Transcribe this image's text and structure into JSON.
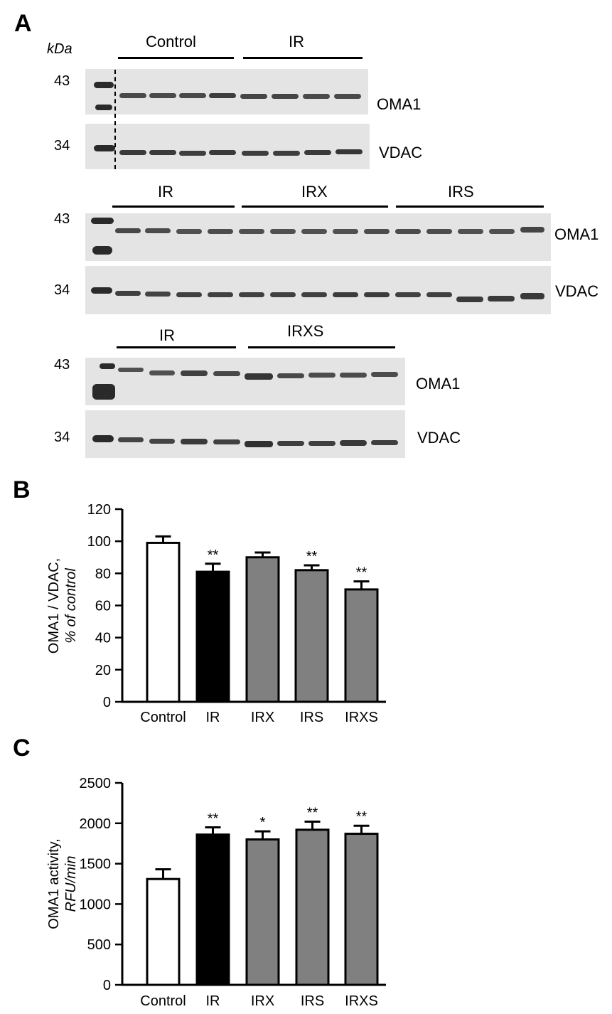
{
  "panel_a": {
    "letter": "A",
    "kda_label": "kDa",
    "blot1": {
      "groups": [
        "Control",
        "IR"
      ],
      "oma1_mw": "43",
      "vdac_mw": "34",
      "oma1_label": "OMA1",
      "vdac_label": "VDAC"
    },
    "blot2": {
      "groups": [
        "IR",
        "IRX",
        "IRS"
      ],
      "oma1_mw": "43",
      "vdac_mw": "34",
      "oma1_label": "OMA1",
      "vdac_label": "VDAC"
    },
    "blot3": {
      "groups": [
        "IR",
        "IRXS"
      ],
      "oma1_mw": "43",
      "vdac_mw": "34",
      "oma1_label": "OMA1",
      "vdac_label": "VDAC"
    }
  },
  "chart_data": [
    {
      "panel": "B",
      "type": "bar",
      "categories": [
        "Control",
        "IR",
        "IRX",
        "IRS",
        "IRXS"
      ],
      "values": [
        99,
        81,
        90,
        82,
        70
      ],
      "errors": [
        4,
        5,
        3,
        3,
        5
      ],
      "significance": [
        "",
        "**",
        "",
        "**",
        "**"
      ],
      "colors": [
        "#ffffff",
        "#000000",
        "#808080",
        "#808080",
        "#808080"
      ],
      "ylabel": "OMA1 / VDAC,",
      "ylabel2": "% of control",
      "ylim": [
        0,
        120
      ],
      "yticks": [
        "0",
        "20",
        "40",
        "60",
        "80",
        "100",
        "120"
      ],
      "grid": false
    },
    {
      "panel": "C",
      "type": "bar",
      "categories": [
        "Control",
        "IR",
        "IRX",
        "IRS",
        "IRXS"
      ],
      "values": [
        1310,
        1860,
        1800,
        1920,
        1870
      ],
      "errors": [
        120,
        90,
        100,
        100,
        100
      ],
      "significance": [
        "",
        "**",
        "*",
        "**",
        "**"
      ],
      "colors": [
        "#ffffff",
        "#000000",
        "#808080",
        "#808080",
        "#808080"
      ],
      "ylabel": "OMA1 activity,",
      "ylabel2": "RFU/min",
      "ylim": [
        0,
        2500
      ],
      "yticks": [
        "0",
        "500",
        "1000",
        "1500",
        "2000",
        "2500"
      ],
      "grid": false
    }
  ]
}
